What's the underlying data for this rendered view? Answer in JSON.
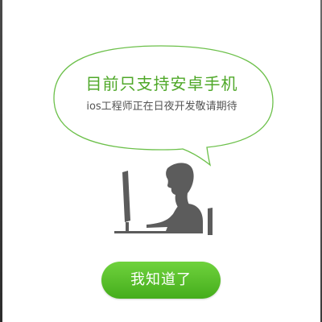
{
  "notice": {
    "title": "目前只支持安卓手机",
    "subtitle": "ios工程师正在日夜开发敬请期待"
  },
  "illustration": {
    "icon": "person-at-computer-icon",
    "color": "#5c5c5c"
  },
  "action": {
    "button_label": "我知道了"
  },
  "colors": {
    "accent": "#4fa829",
    "button_top": "#6fd23d",
    "button_bottom": "#45ad1c",
    "bubble_border": "#6cc04a"
  }
}
